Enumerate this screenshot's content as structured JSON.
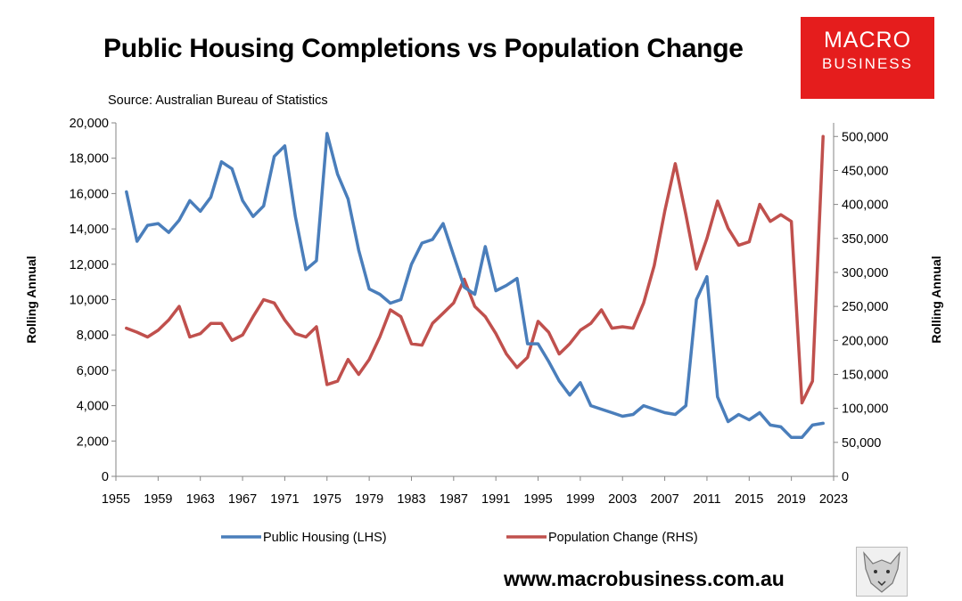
{
  "header": {
    "title": "Public Housing Completions vs Population Change",
    "source": "Source: Australian Bureau of Statistics"
  },
  "logo": {
    "line1": "MACRO",
    "line2": "BUSINESS",
    "color": "#e51d1d"
  },
  "footer": {
    "url": "www.macrobusiness.com.au",
    "mascot_icon": "wolf-icon"
  },
  "chart_data": {
    "type": "line",
    "title": "Public Housing Completions vs Population Change",
    "subtitle": "Source: Australian Bureau of Statistics",
    "x": [
      1956,
      1957,
      1958,
      1959,
      1960,
      1961,
      1962,
      1963,
      1964,
      1965,
      1966,
      1967,
      1968,
      1969,
      1970,
      1971,
      1972,
      1973,
      1974,
      1975,
      1976,
      1977,
      1978,
      1979,
      1980,
      1981,
      1982,
      1983,
      1984,
      1985,
      1986,
      1987,
      1988,
      1989,
      1990,
      1991,
      1992,
      1993,
      1994,
      1995,
      1996,
      1997,
      1998,
      1999,
      2000,
      2001,
      2002,
      2003,
      2004,
      2005,
      2006,
      2007,
      2008,
      2009,
      2010,
      2011,
      2012,
      2013,
      2014,
      2015,
      2016,
      2017,
      2018,
      2019,
      2020,
      2021,
      2022
    ],
    "xlim": [
      1955,
      2023
    ],
    "x_ticks": [
      "1955",
      "1959",
      "1963",
      "1967",
      "1971",
      "1975",
      "1979",
      "1983",
      "1987",
      "1991",
      "1995",
      "1999",
      "2003",
      "2007",
      "2011",
      "2015",
      "2019",
      "2023"
    ],
    "ylabel": "Rolling Annual",
    "ylim": [
      0,
      20000
    ],
    "y_ticks": [
      "0",
      "2,000",
      "4,000",
      "6,000",
      "8,000",
      "10,000",
      "12,000",
      "14,000",
      "16,000",
      "18,000",
      "20,000"
    ],
    "y2label": "Rolling Annual",
    "y2lim": [
      0,
      520000
    ],
    "y2_ticks": [
      "0",
      "50,000",
      "100,000",
      "150,000",
      "200,000",
      "250,000",
      "300,000",
      "350,000",
      "400,000",
      "450,000",
      "500,000"
    ],
    "grid": false,
    "legend_position": "bottom",
    "series": [
      {
        "name": "Public Housing (LHS)",
        "axis": "left",
        "color": "#4a7ebb",
        "values": [
          16100,
          13300,
          14200,
          14300,
          13800,
          14500,
          15600,
          15000,
          15800,
          17800,
          17400,
          15600,
          14700,
          15300,
          18100,
          18700,
          14700,
          11700,
          12200,
          19400,
          17100,
          15700,
          12800,
          10600,
          10300,
          9800,
          10000,
          12000,
          13200,
          13400,
          14300,
          12500,
          10700,
          10300,
          13000,
          10500,
          10800,
          11200,
          7500,
          7500,
          6500,
          5400,
          4600,
          5300,
          4000,
          3800,
          3600,
          3400,
          3500,
          4000,
          3800,
          3600,
          3500,
          4000,
          10000,
          11300,
          4500,
          3100,
          3500,
          3200,
          3600,
          2900,
          2800,
          2200,
          2200,
          2900,
          3000
        ]
      },
      {
        "name": "Population Change (RHS)",
        "axis": "right",
        "color": "#c0504d",
        "values": [
          218000,
          212000,
          205000,
          215000,
          230000,
          250000,
          205000,
          210000,
          225000,
          225000,
          200000,
          208000,
          235000,
          260000,
          255000,
          230000,
          210000,
          205000,
          220000,
          135000,
          140000,
          172000,
          150000,
          172000,
          205000,
          245000,
          235000,
          195000,
          193000,
          225000,
          240000,
          255000,
          290000,
          250000,
          235000,
          210000,
          180000,
          160000,
          175000,
          228000,
          212000,
          180000,
          195000,
          215000,
          225000,
          245000,
          218000,
          220000,
          218000,
          255000,
          310000,
          390000,
          460000,
          385000,
          305000,
          350000,
          405000,
          365000,
          340000,
          345000,
          400000,
          375000,
          385000,
          375000,
          108000,
          140000,
          500000
        ]
      }
    ]
  }
}
